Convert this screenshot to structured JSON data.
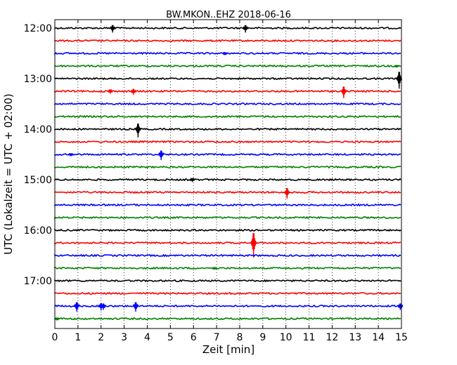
{
  "chart_data": {
    "type": "line",
    "title": "BW.MKON..EHZ 2018-06-16",
    "xlabel": "Zeit  [min]",
    "ylabel": "UTC (Lokalzeit = UTC + 02:00)",
    "xlim": [
      0,
      15
    ],
    "x_ticks": [
      "0",
      "1",
      "2",
      "3",
      "4",
      "5",
      "6",
      "7",
      "8",
      "9",
      "10",
      "11",
      "12",
      "13",
      "14",
      "15"
    ],
    "y_tick_labels": [
      "12:00",
      "13:00",
      "14:00",
      "15:00",
      "16:00",
      "17:00"
    ],
    "grid": true,
    "trace_colors": [
      "#000000",
      "#ff0000",
      "#0000ff",
      "#008000"
    ],
    "traces": [
      {
        "start": "12:00",
        "events": [
          {
            "x": 2.5,
            "amp": 0.35
          },
          {
            "x": 8.25,
            "amp": 0.35
          }
        ]
      },
      {
        "start": "12:15",
        "events": []
      },
      {
        "start": "12:30",
        "events": [
          {
            "x": 7.35,
            "amp": 0.12
          }
        ]
      },
      {
        "start": "12:45",
        "events": [
          {
            "x": 14.8,
            "amp": 0.1
          }
        ]
      },
      {
        "start": "13:00",
        "events": [
          {
            "x": 14.9,
            "amp": 0.8
          }
        ]
      },
      {
        "start": "13:15",
        "events": [
          {
            "x": 2.4,
            "amp": 0.2
          },
          {
            "x": 3.4,
            "amp": 0.28
          },
          {
            "x": 12.5,
            "amp": 0.55
          }
        ]
      },
      {
        "start": "13:30",
        "events": []
      },
      {
        "start": "13:45",
        "events": []
      },
      {
        "start": "14:00",
        "events": [
          {
            "x": 3.6,
            "amp": 0.65
          }
        ]
      },
      {
        "start": "14:15",
        "events": []
      },
      {
        "start": "14:30",
        "events": [
          {
            "x": 0.7,
            "amp": 0.12
          },
          {
            "x": 4.6,
            "amp": 0.45
          }
        ]
      },
      {
        "start": "14:45",
        "events": []
      },
      {
        "start": "15:00",
        "events": [
          {
            "x": 5.95,
            "amp": 0.18
          }
        ]
      },
      {
        "start": "15:15",
        "events": [
          {
            "x": 10.05,
            "amp": 0.5
          }
        ]
      },
      {
        "start": "15:30",
        "events": []
      },
      {
        "start": "15:45",
        "events": []
      },
      {
        "start": "16:00",
        "events": []
      },
      {
        "start": "16:15",
        "events": [
          {
            "x": 8.6,
            "amp": 1.15
          }
        ]
      },
      {
        "start": "16:30",
        "events": []
      },
      {
        "start": "16:45",
        "events": [
          {
            "x": 6.9,
            "amp": 0.1
          }
        ]
      },
      {
        "start": "17:00",
        "events": []
      },
      {
        "start": "17:15",
        "events": []
      },
      {
        "start": "17:30",
        "events": [
          {
            "x": 0.95,
            "amp": 0.45
          },
          {
            "x": 2.0,
            "amp": 0.35
          },
          {
            "x": 2.1,
            "amp": 0.3
          },
          {
            "x": 3.5,
            "amp": 0.45
          },
          {
            "x": 14.95,
            "amp": 0.3
          }
        ]
      },
      {
        "start": "17:45",
        "events": [
          {
            "x": 0.1,
            "amp": 0.12
          }
        ]
      }
    ]
  }
}
